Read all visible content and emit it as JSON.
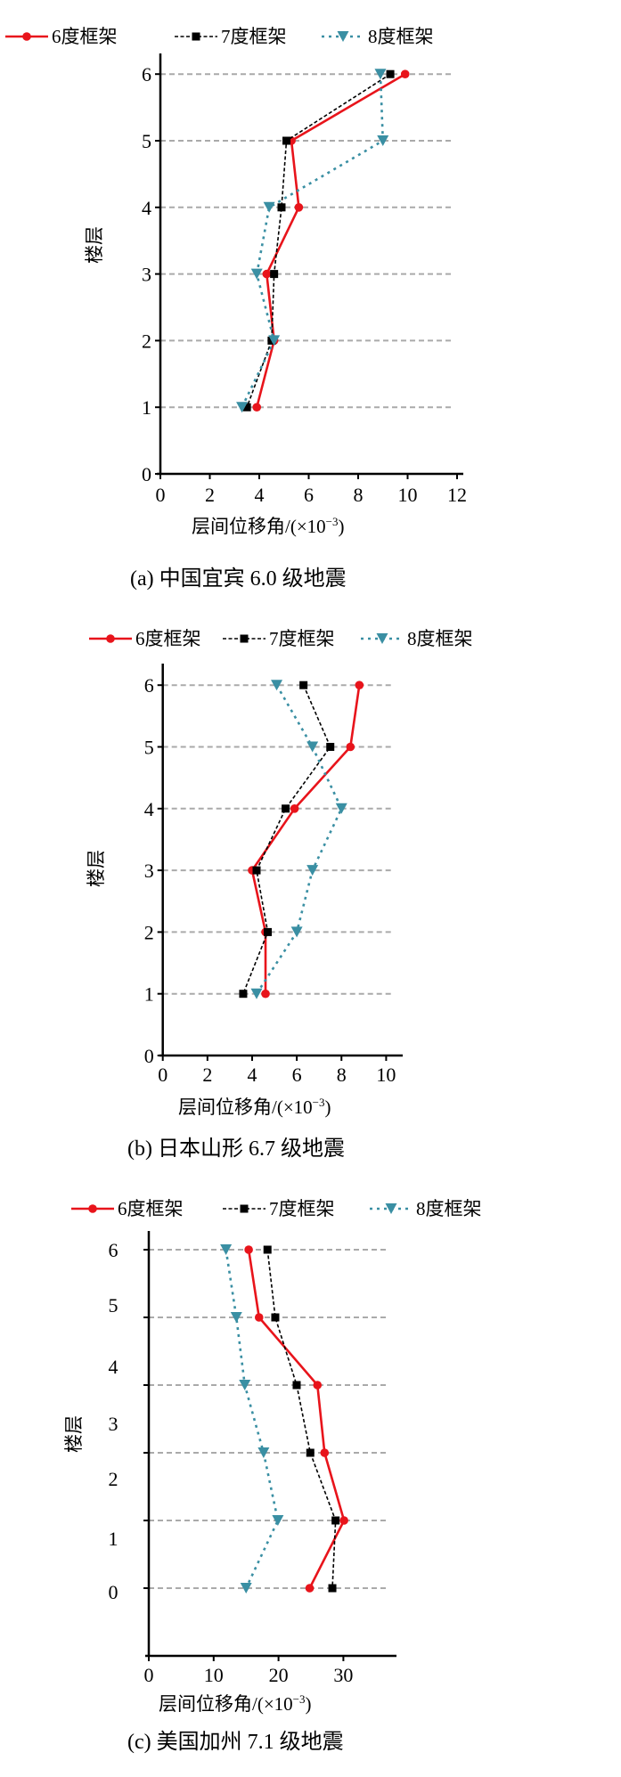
{
  "colors": {
    "s6": "#e8141b",
    "s7": "#000000",
    "s8": "#3a8fa3",
    "grid": "#aaaaaa"
  },
  "chart_data": [
    {
      "type": "line",
      "title": "(a)  中国宜宾 6.0 级地震",
      "xlabel": "层间位移角/(×10",
      "xlabel_exp": "−3",
      "xlabel_end": ")",
      "ylabel": "楼层",
      "xlim": [
        0,
        12
      ],
      "ylim": [
        0,
        6
      ],
      "x_ticks": [
        0,
        2,
        4,
        6,
        8,
        10,
        12
      ],
      "y_ticks": [
        0,
        1,
        2,
        3,
        4,
        5,
        6
      ],
      "y_tick_labels": [
        "0",
        "1",
        "2",
        "3",
        "4",
        "5",
        "6"
      ],
      "grid_floors": [
        1,
        2,
        3,
        4,
        5,
        6
      ],
      "legend_position": "top",
      "series": [
        {
          "name": "6度框架",
          "style": "s6",
          "y": [
            6,
            5,
            4,
            3,
            2,
            1
          ],
          "x": [
            9.9,
            5.3,
            5.6,
            4.3,
            4.6,
            3.9
          ]
        },
        {
          "name": "7度框架",
          "style": "s7",
          "y": [
            6,
            5,
            4,
            3,
            2,
            1
          ],
          "x": [
            9.3,
            5.1,
            4.9,
            4.6,
            4.5,
            3.5
          ]
        },
        {
          "name": "8度框架",
          "style": "s8",
          "y": [
            6,
            5,
            4,
            3,
            2,
            1
          ],
          "x": [
            8.9,
            9.0,
            4.4,
            3.9,
            4.6,
            3.3
          ]
        }
      ]
    },
    {
      "type": "line",
      "title": "(b)  日本山形 6.7 级地震",
      "xlabel": "层间位移角/(×10",
      "xlabel_exp": "−3",
      "xlabel_end": ")",
      "ylabel": "楼层",
      "xlim": [
        0,
        10
      ],
      "ylim": [
        0,
        6
      ],
      "x_ticks": [
        0,
        2,
        4,
        6,
        8,
        10
      ],
      "y_ticks": [
        0,
        1,
        2,
        3,
        4,
        5,
        6
      ],
      "y_tick_labels": [
        "0",
        "1",
        "2",
        "3",
        "4",
        "5",
        "6"
      ],
      "grid_floors": [
        1,
        2,
        3,
        4,
        5,
        6
      ],
      "legend_position": "top",
      "series": [
        {
          "name": "6度框架",
          "style": "s6",
          "y": [
            6,
            5,
            4,
            3,
            2,
            1
          ],
          "x": [
            8.8,
            8.4,
            5.9,
            4.0,
            4.6,
            4.6
          ]
        },
        {
          "name": "7度框架",
          "style": "s7",
          "y": [
            6,
            5,
            4,
            3,
            2,
            1
          ],
          "x": [
            6.3,
            7.5,
            5.5,
            4.2,
            4.7,
            3.6
          ]
        },
        {
          "name": "8度框架",
          "style": "s8",
          "y": [
            6,
            5,
            4,
            3,
            2,
            1
          ],
          "x": [
            5.1,
            6.7,
            8.0,
            6.7,
            6.0,
            4.2
          ]
        }
      ]
    },
    {
      "type": "line",
      "title": "(c)  美国加州 7.1 级地震",
      "xlabel": "层间位移角/(×10",
      "xlabel_exp": "−3",
      "xlabel_end": ")",
      "ylabel": "楼层",
      "xlim": [
        0,
        38
      ],
      "ylim": [
        0,
        6
      ],
      "x_ticks": [
        0,
        10,
        20,
        30
      ],
      "y_ticks": [
        6,
        5,
        4,
        3,
        2,
        1,
        0
      ],
      "y_tick_labels": [
        "6",
        "5",
        "4",
        "3",
        "2",
        "1",
        "0"
      ],
      "grid_floors": [
        1,
        2,
        3,
        4,
        5,
        6
      ],
      "legend_position": "top",
      "series": [
        {
          "name": "6度框架",
          "style": "s6",
          "y": [
            6,
            5,
            4,
            3,
            2,
            1
          ],
          "x": [
            15.4,
            17.0,
            26.0,
            27.1,
            30.1,
            24.8
          ]
        },
        {
          "name": "7度框架",
          "style": "s7",
          "y": [
            6,
            5,
            4,
            3,
            2,
            1
          ],
          "x": [
            18.3,
            19.5,
            22.8,
            24.9,
            28.8,
            28.3
          ]
        },
        {
          "name": "8度框架",
          "style": "s8",
          "y": [
            6,
            5,
            4,
            3,
            2,
            1
          ],
          "x": [
            11.9,
            13.5,
            14.8,
            17.7,
            19.9,
            15.0
          ]
        }
      ]
    }
  ]
}
